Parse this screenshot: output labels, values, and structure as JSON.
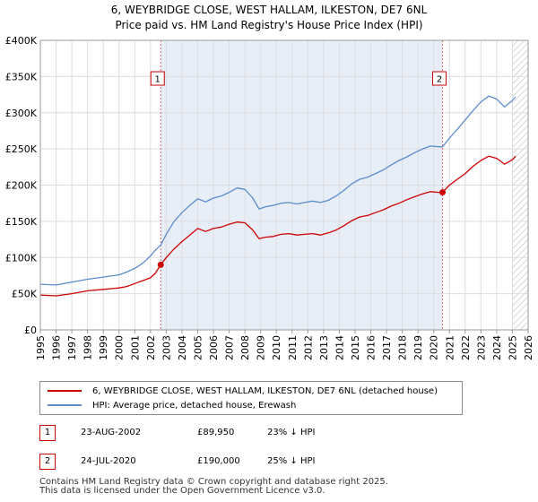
{
  "chart_data": {
    "type": "line",
    "title": "6, WEYBRIDGE CLOSE, WEST HALLAM, ILKESTON, DE7 6NL",
    "subtitle": "Price paid vs. HM Land Registry's House Price Index (HPI)",
    "xlabel": "",
    "ylabel": "",
    "xlim": [
      1995,
      2026
    ],
    "ylim": [
      0,
      400000
    ],
    "x_ticks": [
      "1995",
      "1996",
      "1997",
      "1998",
      "1999",
      "2000",
      "2001",
      "2002",
      "2003",
      "2004",
      "2005",
      "2006",
      "2007",
      "2008",
      "2009",
      "2010",
      "2011",
      "2012",
      "2013",
      "2014",
      "2015",
      "2016",
      "2017",
      "2018",
      "2019",
      "2020",
      "2021",
      "2022",
      "2023",
      "2024",
      "2025",
      "2026"
    ],
    "y_ticks": [
      "£0",
      "£50K",
      "£100K",
      "£150K",
      "£200K",
      "£250K",
      "£300K",
      "£350K",
      "£400K"
    ],
    "grid": true,
    "series": [
      {
        "name": "6, WEYBRIDGE CLOSE, WEST HALLAM, ILKESTON, DE7 6NL (detached house)",
        "color": "#cc0000",
        "x": [
          1995.0,
          1996.0,
          1997.0,
          1997.5,
          1998.0,
          1999.0,
          2000.0,
          2000.5,
          2001.0,
          2001.5,
          2002.0,
          2002.3,
          2002.65,
          2003.0,
          2003.5,
          2004.0,
          2004.5,
          2005.0,
          2005.5,
          2006.0,
          2006.5,
          2007.0,
          2007.5,
          2008.0,
          2008.5,
          2008.9,
          2009.3,
          2009.8,
          2010.3,
          2010.8,
          2011.3,
          2011.8,
          2012.3,
          2012.8,
          2013.3,
          2013.8,
          2014.3,
          2014.8,
          2015.3,
          2015.8,
          2016.3,
          2016.8,
          2017.3,
          2017.8,
          2018.3,
          2018.8,
          2019.3,
          2019.8,
          2020.3,
          2020.56,
          2021.0,
          2021.5,
          2022.0,
          2022.5,
          2023.0,
          2023.5,
          2024.0,
          2024.5,
          2025.0,
          2025.2
        ],
        "y": [
          48000,
          47000,
          50000,
          52000,
          54000,
          56000,
          58000,
          60000,
          64000,
          68000,
          72000,
          78000,
          89950,
          100000,
          112000,
          122000,
          131000,
          140000,
          136000,
          140000,
          142000,
          146000,
          149000,
          148000,
          138000,
          126000,
          128000,
          129000,
          132000,
          133000,
          131000,
          132000,
          133000,
          131000,
          134000,
          138000,
          144000,
          151000,
          156000,
          158000,
          162000,
          166000,
          171000,
          175000,
          180000,
          184000,
          188000,
          191000,
          190000,
          190000,
          200000,
          208000,
          216000,
          226000,
          234000,
          240000,
          237000,
          229000,
          235000,
          240000
        ]
      },
      {
        "name": "HPI: Average price, detached house, Erewash",
        "color": "#5b8ccc",
        "x": [
          1995.0,
          1996.0,
          1997.0,
          1997.5,
          1998.0,
          1999.0,
          2000.0,
          2000.5,
          2001.0,
          2001.5,
          2002.0,
          2002.3,
          2002.65,
          2003.0,
          2003.5,
          2004.0,
          2004.5,
          2005.0,
          2005.5,
          2006.0,
          2006.5,
          2007.0,
          2007.5,
          2008.0,
          2008.5,
          2008.9,
          2009.3,
          2009.8,
          2010.3,
          2010.8,
          2011.3,
          2011.8,
          2012.3,
          2012.8,
          2013.3,
          2013.8,
          2014.3,
          2014.8,
          2015.3,
          2015.8,
          2016.3,
          2016.8,
          2017.3,
          2017.8,
          2018.3,
          2018.8,
          2019.3,
          2019.8,
          2020.3,
          2020.56,
          2021.0,
          2021.5,
          2022.0,
          2022.5,
          2023.0,
          2023.5,
          2024.0,
          2024.5,
          2025.0,
          2025.2
        ],
        "y": [
          63000,
          62000,
          66000,
          68000,
          70000,
          73000,
          76000,
          80000,
          85000,
          92000,
          102000,
          110000,
          117000,
          132000,
          150000,
          162000,
          172000,
          181000,
          177000,
          182000,
          185000,
          190000,
          196000,
          194000,
          182000,
          167000,
          170000,
          172000,
          175000,
          176000,
          174000,
          176000,
          178000,
          176000,
          179000,
          185000,
          193000,
          202000,
          208000,
          211000,
          216000,
          221000,
          228000,
          234000,
          239000,
          245000,
          250000,
          254000,
          253000,
          253000,
          265000,
          277000,
          290000,
          303000,
          315000,
          323000,
          319000,
          308000,
          317000,
          322000
        ]
      }
    ],
    "markers": [
      {
        "label": "1",
        "x": 2002.65
      },
      {
        "label": "2",
        "x": 2020.56
      }
    ],
    "shaded_span": [
      2002.65,
      2020.56
    ],
    "hatched_from": 2025.0
  },
  "legend": {
    "items": [
      {
        "label": "6, WEYBRIDGE CLOSE, WEST HALLAM, ILKESTON, DE7 6NL (detached house)",
        "color": "#cc0000"
      },
      {
        "label": "HPI: Average price, detached house, Erewash",
        "color": "#5b8ccc"
      }
    ]
  },
  "transactions": [
    {
      "num": "1",
      "date": "23-AUG-2002",
      "price": "£89,950",
      "hpi": "23% ↓ HPI"
    },
    {
      "num": "2",
      "date": "24-JUL-2020",
      "price": "£190,000",
      "hpi": "25% ↓ HPI"
    }
  ],
  "footer": {
    "line1": "Contains HM Land Registry data © Crown copyright and database right 2025.",
    "line2": "This data is licensed under the Open Government Licence v3.0."
  }
}
